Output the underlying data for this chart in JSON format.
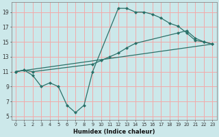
{
  "xlabel": "Humidex (Indice chaleur)",
  "xlim": [
    -0.5,
    23.5
  ],
  "ylim": [
    4.5,
    20.3
  ],
  "yticks": [
    5,
    7,
    9,
    11,
    13,
    15,
    17,
    19
  ],
  "xticks": [
    0,
    1,
    2,
    3,
    4,
    5,
    6,
    7,
    8,
    9,
    10,
    11,
    12,
    13,
    14,
    15,
    16,
    17,
    18,
    19,
    20,
    21,
    22,
    23
  ],
  "bg_color": "#cce8ea",
  "grid_color": "#f2aaaa",
  "line_color": "#2a7068",
  "line1_x": [
    0,
    1,
    2,
    3,
    4,
    5,
    6,
    7,
    8,
    9,
    12,
    13,
    14,
    15,
    16,
    17,
    18,
    19,
    20,
    21,
    22,
    23
  ],
  "line1_y": [
    11,
    11.2,
    10.5,
    9.0,
    9.5,
    9.0,
    6.5,
    5.5,
    6.5,
    11.0,
    19.5,
    19.5,
    19.0,
    19.0,
    18.7,
    18.2,
    17.5,
    17.1,
    16.2,
    15.2,
    15.0,
    14.7
  ],
  "line2_x": [
    0,
    1,
    2,
    9,
    10,
    11,
    12,
    13,
    14,
    19,
    20,
    21,
    22,
    23
  ],
  "line2_y": [
    11,
    11.2,
    11.0,
    12.0,
    12.5,
    13.0,
    13.5,
    14.2,
    14.8,
    16.2,
    16.5,
    15.5,
    15.0,
    14.7
  ],
  "line3_x": [
    0,
    23
  ],
  "line3_y": [
    11,
    14.7
  ]
}
